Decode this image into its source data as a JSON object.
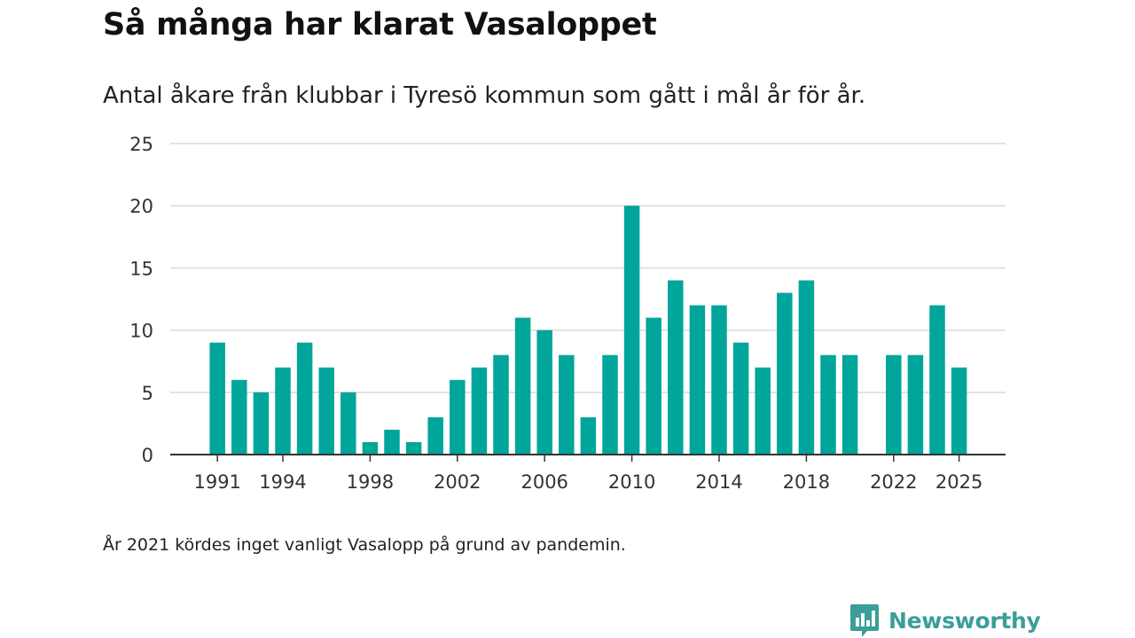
{
  "header": {
    "title": "Så många har klarat Vasaloppet",
    "subtitle": "Antal åkare från klubbar i Tyresö kommun som gått i mål år för år."
  },
  "footer": {
    "note": "År 2021 kördes inget vanligt Vasalopp på grund av pandemin.",
    "brand": "Newsworthy",
    "brand_icon": "bar-chart-icon"
  },
  "colors": {
    "bar": "#00a59b",
    "gridline": "#d9d9d9",
    "axis": "#333333",
    "brand": "#3a9e9a"
  },
  "chart_data": {
    "type": "bar",
    "title": "Så många har klarat Vasaloppet",
    "subtitle": "Antal åkare från klubbar i Tyresö kommun som gått i mål år för år.",
    "xlabel": "",
    "ylabel": "",
    "ylim": [
      0,
      25
    ],
    "yticks": [
      0,
      5,
      10,
      15,
      20,
      25
    ],
    "xticks": [
      1991,
      1994,
      1998,
      2002,
      2006,
      2010,
      2014,
      2018,
      2022,
      2025
    ],
    "grid": true,
    "legend": "none",
    "series": [
      {
        "name": "Antal åkare",
        "x": [
          1991,
          1992,
          1993,
          1994,
          1995,
          1996,
          1997,
          1998,
          1999,
          2000,
          2001,
          2002,
          2003,
          2004,
          2005,
          2006,
          2007,
          2008,
          2009,
          2010,
          2011,
          2012,
          2013,
          2014,
          2015,
          2016,
          2017,
          2018,
          2019,
          2020,
          2021,
          2022,
          2023,
          2024,
          2025
        ],
        "values": [
          9,
          6,
          5,
          7,
          9,
          7,
          5,
          1,
          2,
          1,
          3,
          6,
          7,
          8,
          11,
          10,
          8,
          3,
          8,
          20,
          11,
          14,
          12,
          12,
          9,
          7,
          13,
          14,
          8,
          8,
          null,
          8,
          8,
          12,
          7
        ]
      }
    ]
  }
}
